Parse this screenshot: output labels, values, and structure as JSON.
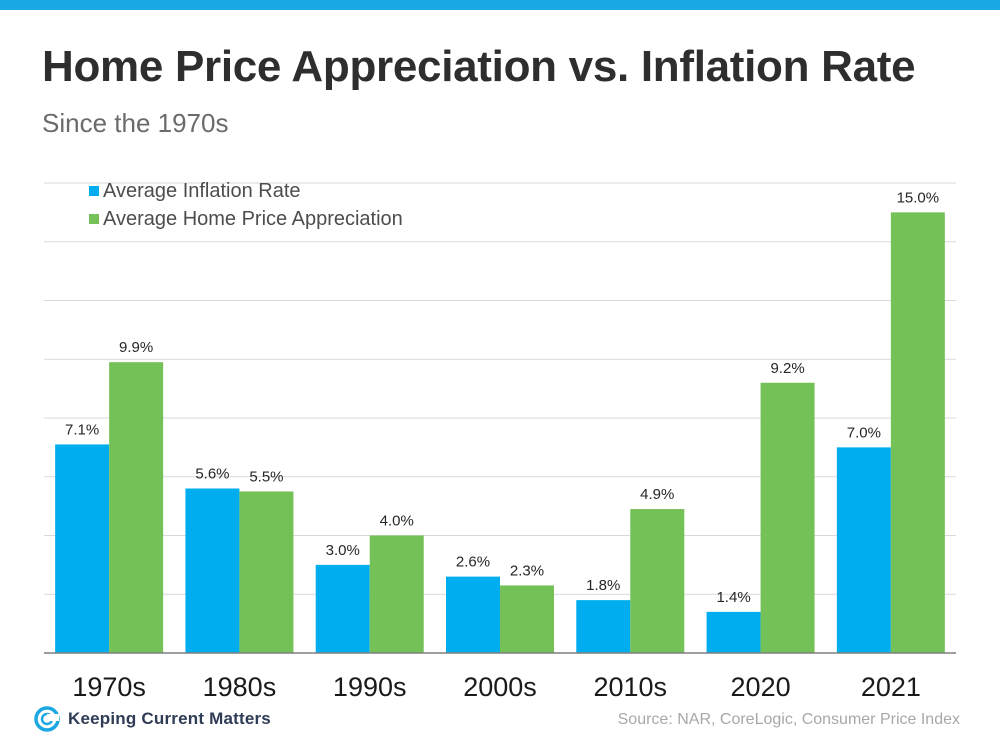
{
  "header": {
    "title": "Home Price Appreciation vs. Inflation Rate",
    "subtitle": "Since the 1970s"
  },
  "colors": {
    "accent_bar": "#1ba7e1",
    "inflation": "#00aeef",
    "appreciation": "#74c158",
    "gridline": "#d9d9d9",
    "axis": "#7f7f7f"
  },
  "chart_data": {
    "type": "bar",
    "categories": [
      "1970s",
      "1980s",
      "1990s",
      "2000s",
      "2010s",
      "2020",
      "2021"
    ],
    "series": [
      {
        "name": "Average Inflation Rate",
        "values": [
          7.1,
          5.6,
          3.0,
          2.6,
          1.8,
          1.4,
          7.0
        ],
        "labels": [
          "7.1%",
          "5.6%",
          "3.0%",
          "2.6%",
          "1.8%",
          "1.4%",
          "7.0%"
        ]
      },
      {
        "name": "Average Home Price Appreciation",
        "values": [
          9.9,
          5.5,
          4.0,
          2.3,
          4.9,
          9.2,
          15.0
        ],
        "labels": [
          "9.9%",
          "5.5%",
          "4.0%",
          "2.3%",
          "4.9%",
          "9.2%",
          "15.0%"
        ]
      }
    ],
    "ylim": [
      0,
      16
    ],
    "grid": true,
    "legend_position": "top-left"
  },
  "footer": {
    "logo_text": "Keeping Current Matters",
    "source": "Source: NAR, CoreLogic, Consumer Price Index"
  }
}
